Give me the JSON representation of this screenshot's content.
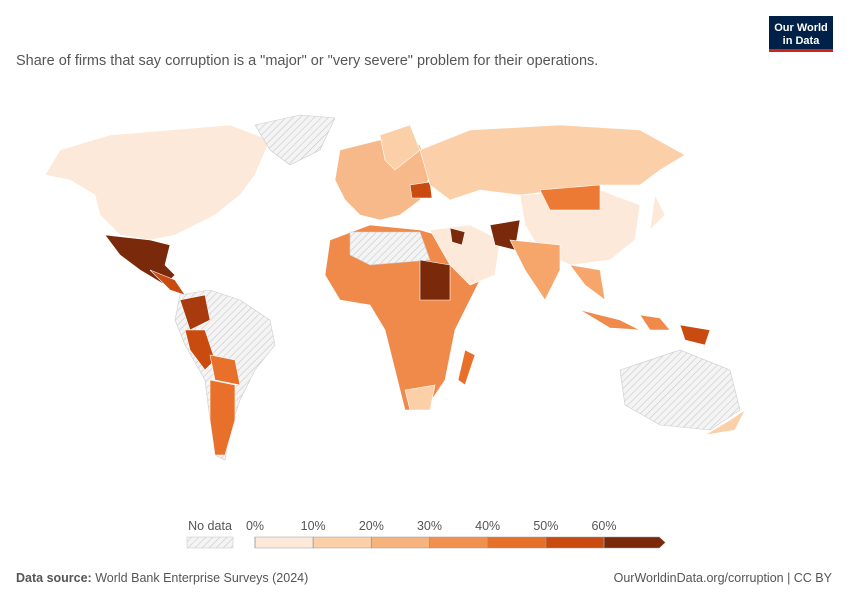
{
  "header": {
    "logo_line1": "Our World",
    "logo_line2": "in Data",
    "title": "Share of firms that say corruption is a \"major\" or \"very severe\" problem for their operations."
  },
  "legend": {
    "no_data": "No data",
    "ticks": [
      {
        "value": 0,
        "label": "0%"
      },
      {
        "value": 10,
        "label": "10%"
      },
      {
        "value": 20,
        "label": "20%"
      },
      {
        "value": 30,
        "label": "30%"
      },
      {
        "value": 40,
        "label": "40%"
      },
      {
        "value": 50,
        "label": "50%"
      },
      {
        "value": 60,
        "label": "60%"
      }
    ],
    "colors": [
      "#fde9d9",
      "#fbd0a8",
      "#f7b37e",
      "#f0914f",
      "#e6702a",
      "#c94b10",
      "#7a2a0a"
    ]
  },
  "footer": {
    "source_label": "Data source:",
    "source": "World Bank Enterprise Surveys (2024)",
    "url": "OurWorldinData.org/corruption | CC BY"
  }
}
